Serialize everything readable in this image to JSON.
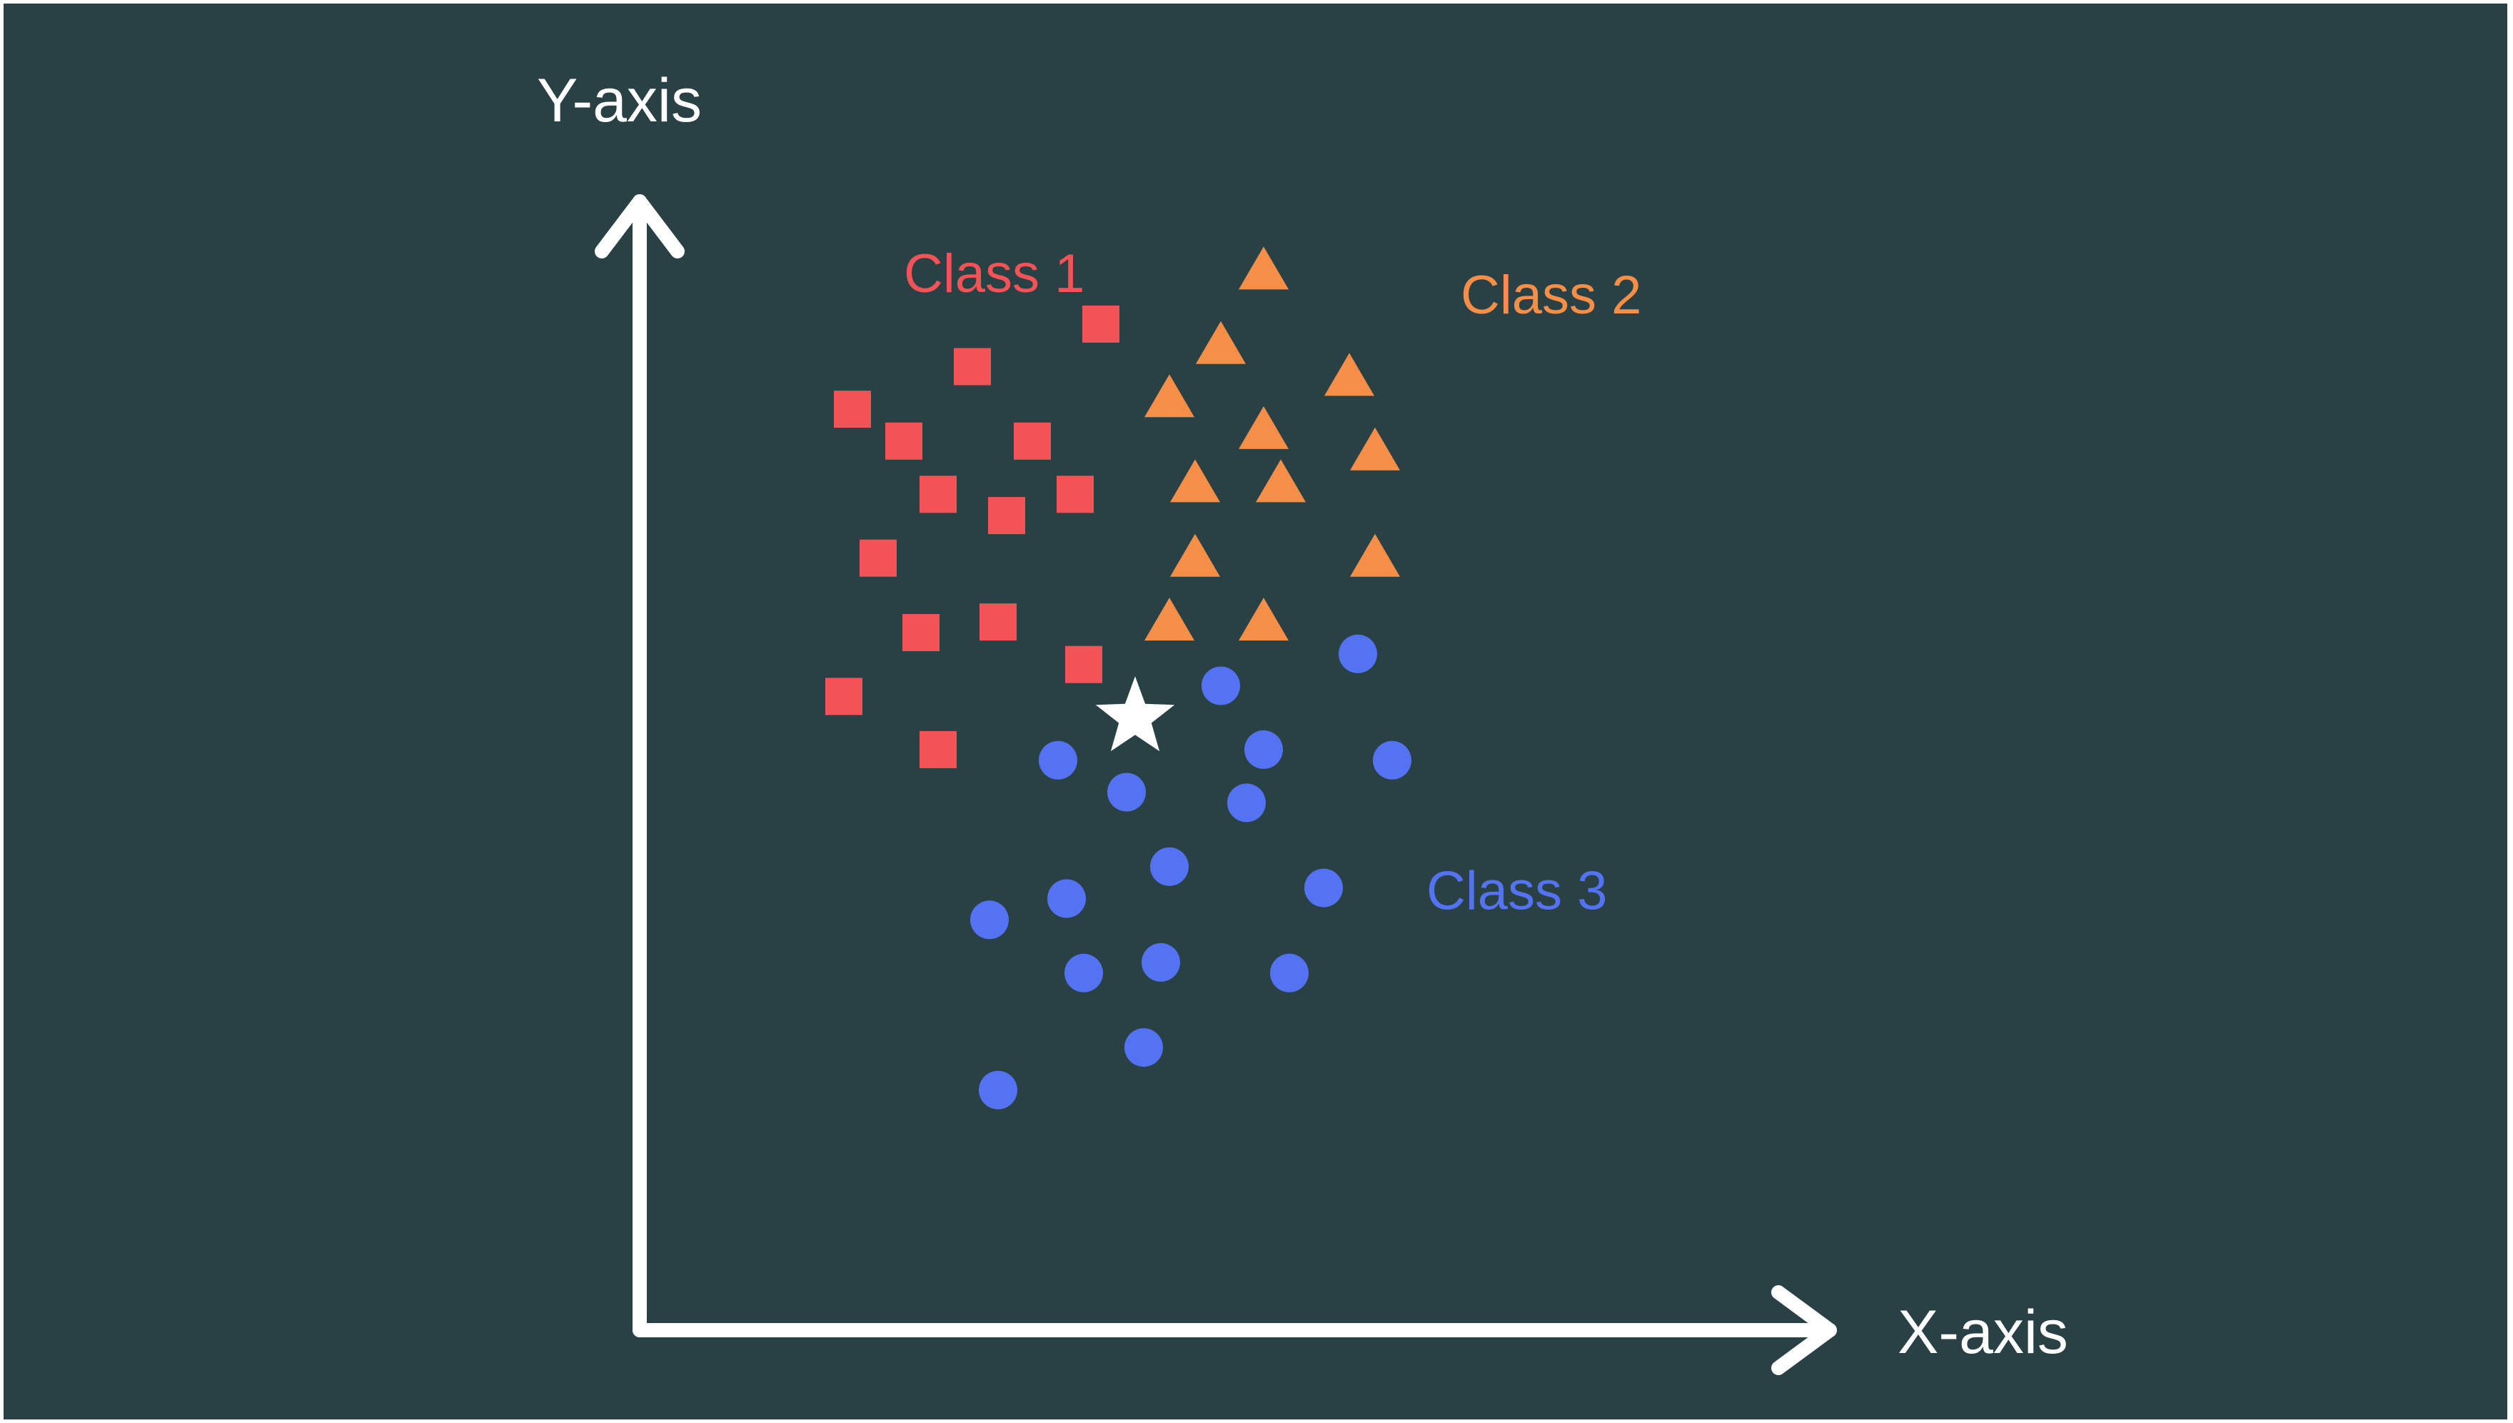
{
  "colors": {
    "background": "#294144",
    "frame": "#ffffff",
    "axis": "#ffffff",
    "class1": "#f25357",
    "class2": "#f58f48",
    "class3": "#5373f2",
    "query": "#ffffff"
  },
  "chart_data": {
    "type": "scatter",
    "title": "",
    "xlabel": "X-axis",
    "ylabel": "Y-axis",
    "xlim": [
      0,
      100
    ],
    "ylim": [
      0,
      100
    ],
    "grid": false,
    "ticks": false,
    "series": [
      {
        "name": "Class 1",
        "marker": "square",
        "color": "#f25357",
        "label_position": {
          "x": 18,
          "y": 92
        },
        "points": [
          {
            "x": 41,
            "y": 89
          },
          {
            "x": 26,
            "y": 85
          },
          {
            "x": 12,
            "y": 81
          },
          {
            "x": 18,
            "y": 78
          },
          {
            "x": 33,
            "y": 78
          },
          {
            "x": 22,
            "y": 73
          },
          {
            "x": 30,
            "y": 71
          },
          {
            "x": 38,
            "y": 73
          },
          {
            "x": 15,
            "y": 67
          },
          {
            "x": 20,
            "y": 60
          },
          {
            "x": 29,
            "y": 61
          },
          {
            "x": 39,
            "y": 57
          },
          {
            "x": 11,
            "y": 54
          },
          {
            "x": 22,
            "y": 49
          }
        ]
      },
      {
        "name": "Class 2",
        "marker": "triangle",
        "color": "#f58f48",
        "label_position": {
          "x": 83,
          "y": 90
        },
        "points": [
          {
            "x": 60,
            "y": 94
          },
          {
            "x": 55,
            "y": 87
          },
          {
            "x": 70,
            "y": 84
          },
          {
            "x": 49,
            "y": 82
          },
          {
            "x": 60,
            "y": 79
          },
          {
            "x": 73,
            "y": 77
          },
          {
            "x": 52,
            "y": 74
          },
          {
            "x": 62,
            "y": 74
          },
          {
            "x": 52,
            "y": 67
          },
          {
            "x": 73,
            "y": 67
          },
          {
            "x": 49,
            "y": 61
          },
          {
            "x": 60,
            "y": 61
          }
        ]
      },
      {
        "name": "Class 3",
        "marker": "circle",
        "color": "#5373f2",
        "label_position": {
          "x": 79,
          "y": 34
        },
        "points": [
          {
            "x": 71,
            "y": 58
          },
          {
            "x": 55,
            "y": 55
          },
          {
            "x": 36,
            "y": 48
          },
          {
            "x": 60,
            "y": 49
          },
          {
            "x": 75,
            "y": 48
          },
          {
            "x": 44,
            "y": 45
          },
          {
            "x": 58,
            "y": 44
          },
          {
            "x": 49,
            "y": 38
          },
          {
            "x": 67,
            "y": 36
          },
          {
            "x": 37,
            "y": 35
          },
          {
            "x": 28,
            "y": 33
          },
          {
            "x": 39,
            "y": 28
          },
          {
            "x": 48,
            "y": 29
          },
          {
            "x": 63,
            "y": 28
          },
          {
            "x": 46,
            "y": 21
          },
          {
            "x": 29,
            "y": 17
          }
        ]
      },
      {
        "name": "",
        "marker": "star",
        "color": "#ffffff",
        "points": [
          {
            "x": 45,
            "y": 52
          }
        ]
      }
    ]
  }
}
